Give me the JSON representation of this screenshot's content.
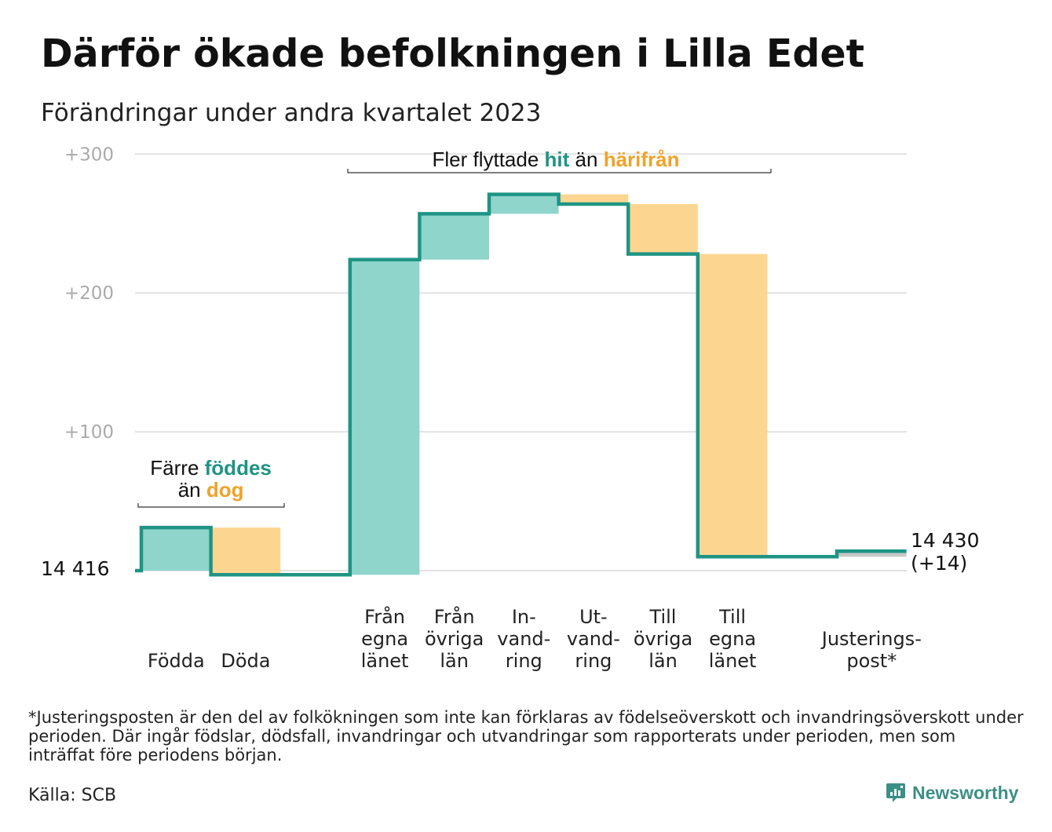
{
  "title": "Därför ökade befolkningen i Lilla Edet",
  "subtitle": "Förändringar under andra kvartalet 2023",
  "footnote": "*Justeringsposten är den del av folkökningen som inte kan förklaras av födelseöverskott och invandringsöverskott under perioden. Där ingår födslar, dödsfall, invandringar och utvandringar som rapporterats under perioden, men som inträffat före periodens början.",
  "source": "Källa: SCB",
  "brand": "Newsworthy",
  "colors": {
    "increase": "#8fd5cc",
    "decrease": "#fcd690",
    "line": "#1e9484",
    "accent_teal": "#1e9484",
    "accent_orange": "#f0a22a",
    "grid": "#e2e2e2",
    "tick_label": "#aaaaaa",
    "adjustment": "#c8c8c8"
  },
  "chart_data": {
    "type": "waterfall",
    "start": {
      "label": "14  416",
      "value": 14416
    },
    "end": {
      "value": 14430,
      "label_line1": "14 430",
      "label_line2": "(+14)"
    },
    "y_ticks": [
      {
        "value": 100,
        "label": "+100"
      },
      {
        "value": 200,
        "label": "+200"
      },
      {
        "value": 300,
        "label": "+300"
      }
    ],
    "grid": true,
    "steps": [
      {
        "lines": [
          "Födda"
        ],
        "change": 31,
        "kind": "increase"
      },
      {
        "lines": [
          "Döda"
        ],
        "change": -34,
        "kind": "decrease"
      },
      {
        "lines": [],
        "change": 0,
        "kind": "neutral"
      },
      {
        "lines": [
          "Från",
          "egna",
          "länet"
        ],
        "change": 227,
        "kind": "increase"
      },
      {
        "lines": [
          "Från",
          "övriga",
          "län"
        ],
        "change": 33,
        "kind": "increase"
      },
      {
        "lines": [
          "In-",
          "vand-",
          "ring"
        ],
        "change": 14,
        "kind": "increase"
      },
      {
        "lines": [
          "Ut-",
          "vand-",
          "ring"
        ],
        "change": -7,
        "kind": "decrease"
      },
      {
        "lines": [
          "Till",
          "övriga",
          "län"
        ],
        "change": -36,
        "kind": "decrease"
      },
      {
        "lines": [
          "Till",
          "egna",
          "länet"
        ],
        "change": -218,
        "kind": "decrease"
      },
      {
        "lines": [],
        "change": 0,
        "kind": "neutral"
      },
      {
        "lines": [
          "Justerings-",
          "post*"
        ],
        "change": 4,
        "kind": "adjustment"
      }
    ],
    "annotations": [
      {
        "id": "births",
        "line1": [
          "Färre ",
          "föddes"
        ],
        "line2": [
          "än ",
          "dog"
        ],
        "from_step": 0,
        "to_step": 1
      },
      {
        "id": "migration",
        "parts": [
          "Fler flyttade ",
          "hit",
          " än ",
          "härifrån"
        ],
        "from_step": 3,
        "to_step": 8
      }
    ]
  }
}
